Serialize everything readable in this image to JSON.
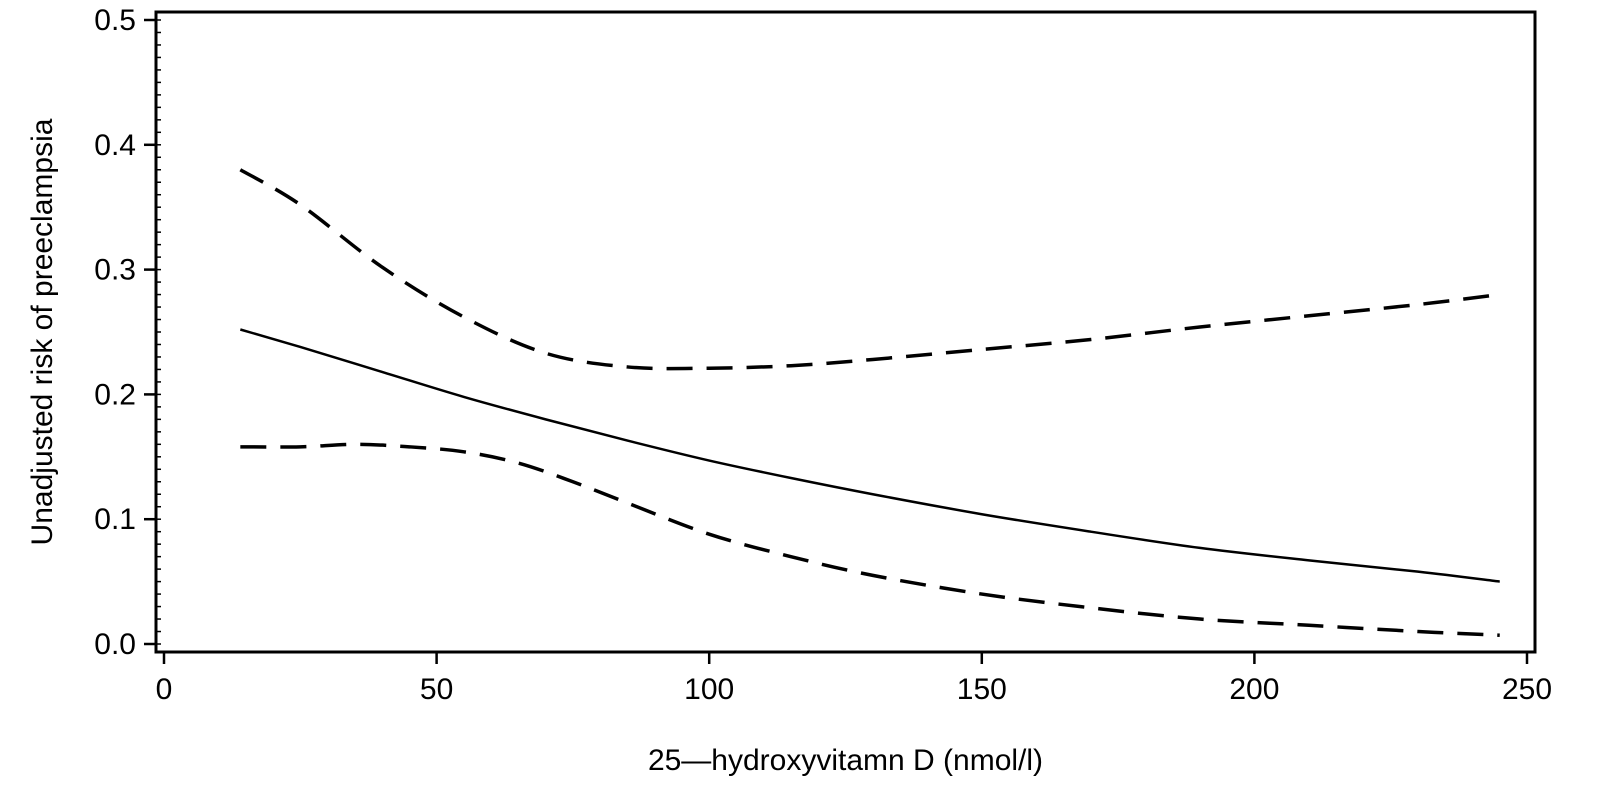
{
  "chart_data": {
    "type": "line",
    "title": "",
    "xlabel": "25—hydroxyvitamn D (nmol/l)",
    "ylabel": "Unadjusted risk of preeclampsia",
    "xlim": [
      0,
      250
    ],
    "ylim": [
      0.0,
      0.5
    ],
    "x_ticks": [
      0,
      50,
      100,
      150,
      200,
      250
    ],
    "x_tick_labels": [
      "0",
      "50",
      "100",
      "150",
      "200",
      "250"
    ],
    "y_ticks": [
      0.0,
      0.1,
      0.2,
      0.3,
      0.4,
      0.5
    ],
    "y_tick_labels": [
      "0.0",
      "0.1",
      "0.2",
      "0.3",
      "0.4",
      "0.5"
    ],
    "grid": false,
    "legend": "none",
    "series": [
      {
        "style": "dashed",
        "color": "#000000",
        "points": [
          [
            14,
            0.38
          ],
          [
            25,
            0.352
          ],
          [
            40,
            0.302
          ],
          [
            55,
            0.262
          ],
          [
            70,
            0.233
          ],
          [
            85,
            0.222
          ],
          [
            100,
            0.221
          ],
          [
            115,
            0.223
          ],
          [
            130,
            0.228
          ],
          [
            150,
            0.236
          ],
          [
            170,
            0.244
          ],
          [
            190,
            0.254
          ],
          [
            210,
            0.263
          ],
          [
            230,
            0.272
          ],
          [
            245,
            0.28
          ]
        ]
      },
      {
        "style": "solid",
        "color": "#000000",
        "points": [
          [
            14,
            0.252
          ],
          [
            25,
            0.238
          ],
          [
            40,
            0.218
          ],
          [
            55,
            0.198
          ],
          [
            70,
            0.18
          ],
          [
            85,
            0.163
          ],
          [
            100,
            0.147
          ],
          [
            115,
            0.133
          ],
          [
            130,
            0.12
          ],
          [
            150,
            0.104
          ],
          [
            170,
            0.09
          ],
          [
            190,
            0.077
          ],
          [
            210,
            0.067
          ],
          [
            230,
            0.058
          ],
          [
            245,
            0.05
          ]
        ]
      },
      {
        "style": "dashed",
        "color": "#000000",
        "points": [
          [
            14,
            0.158
          ],
          [
            25,
            0.158
          ],
          [
            35,
            0.16
          ],
          [
            45,
            0.158
          ],
          [
            55,
            0.154
          ],
          [
            65,
            0.145
          ],
          [
            75,
            0.13
          ],
          [
            85,
            0.113
          ],
          [
            100,
            0.088
          ],
          [
            115,
            0.07
          ],
          [
            130,
            0.055
          ],
          [
            150,
            0.04
          ],
          [
            170,
            0.029
          ],
          [
            190,
            0.02
          ],
          [
            210,
            0.015
          ],
          [
            230,
            0.01
          ],
          [
            245,
            0.007
          ]
        ]
      }
    ]
  }
}
